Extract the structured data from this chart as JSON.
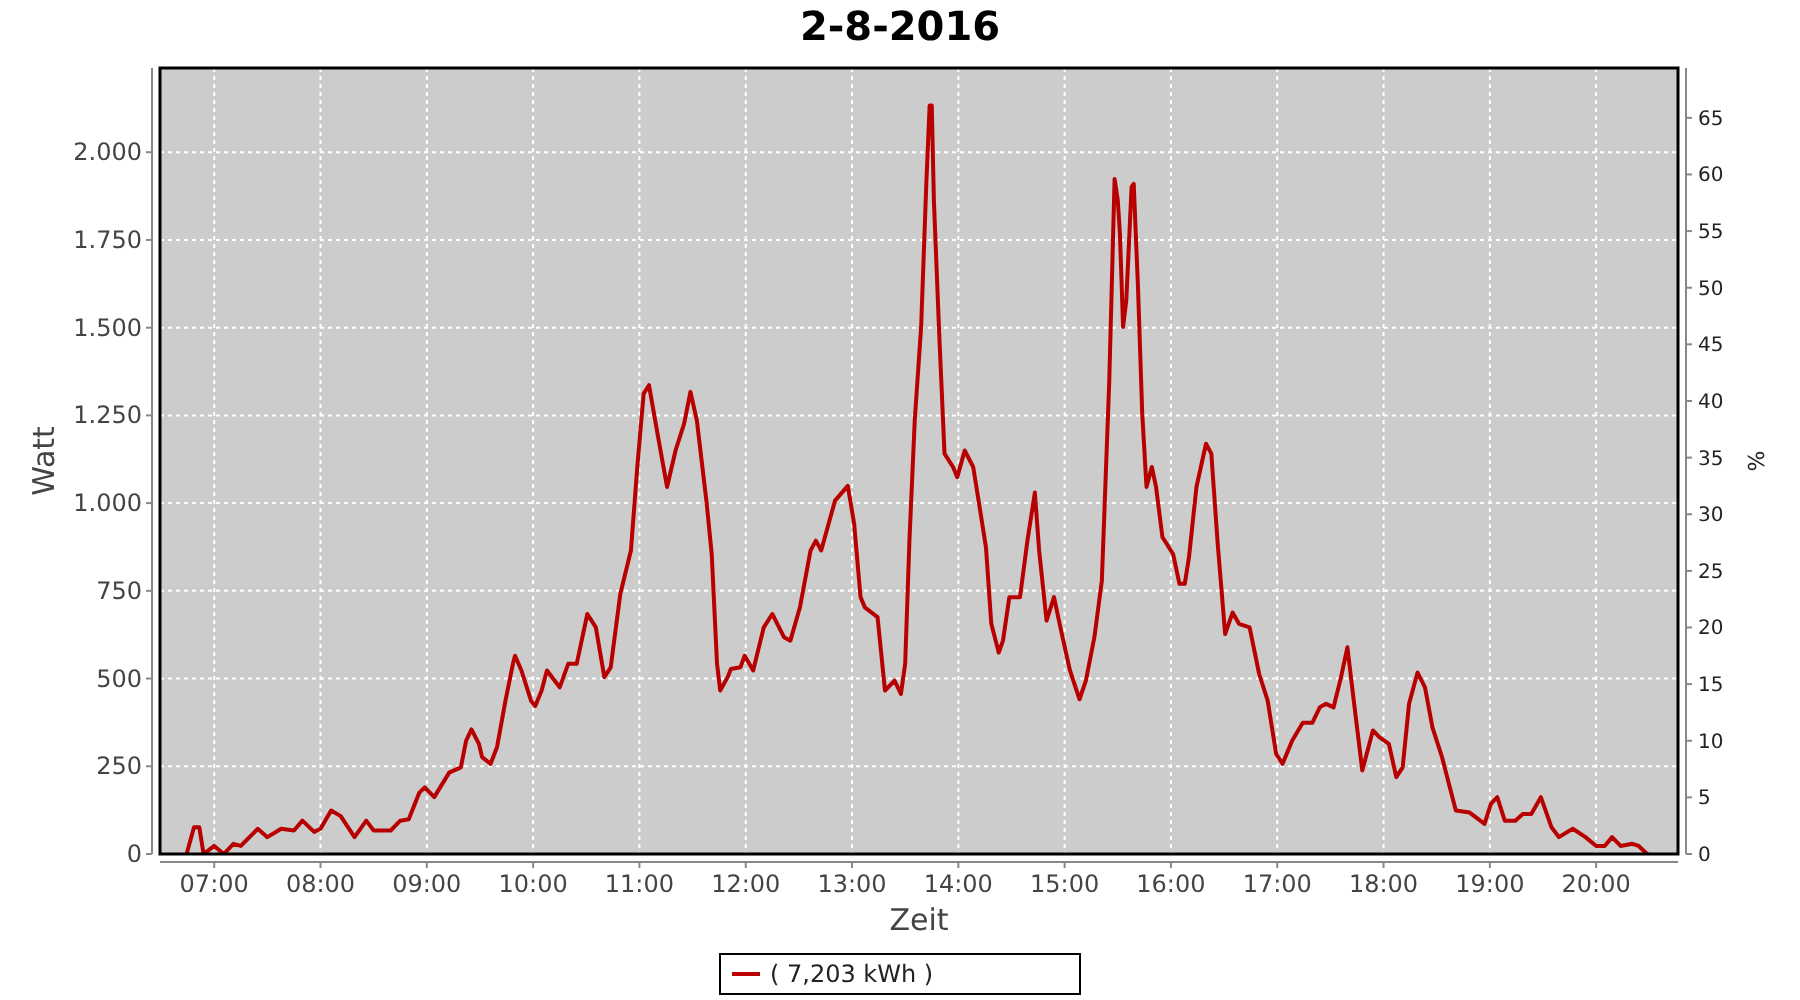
{
  "chart_data": {
    "type": "line",
    "title": "2-8-2016",
    "xlabel": "Zeit",
    "ylabel": "Watt",
    "y2label": "%",
    "xlim": [
      6.49,
      20.77
    ],
    "xticks": [
      {
        "value": 7,
        "label": "07:00"
      },
      {
        "value": 8,
        "label": "08:00"
      },
      {
        "value": 9,
        "label": "09:00"
      },
      {
        "value": 10,
        "label": "10:00"
      },
      {
        "value": 11,
        "label": "11:00"
      },
      {
        "value": 12,
        "label": "12:00"
      },
      {
        "value": 13,
        "label": "13:00"
      },
      {
        "value": 14,
        "label": "14:00"
      },
      {
        "value": 15,
        "label": "15:00"
      },
      {
        "value": 16,
        "label": "16:00"
      },
      {
        "value": 17,
        "label": "17:00"
      },
      {
        "value": 18,
        "label": "18:00"
      },
      {
        "value": 19,
        "label": "19:00"
      },
      {
        "value": 20,
        "label": "20:00"
      }
    ],
    "ylim": [
      0,
      2240
    ],
    "yticks": [
      0,
      250,
      500,
      750,
      {
        "value": 1000,
        "label": "1.000"
      },
      {
        "value": 1250,
        "label": "1.250"
      },
      {
        "value": 1500,
        "label": "1.500"
      },
      {
        "value": 1750,
        "label": "1.750"
      },
      {
        "value": 2000,
        "label": "2.000"
      }
    ],
    "y2lim": [
      0,
      69.4
    ],
    "y2ticks": [
      0,
      5,
      10,
      15,
      20,
      25,
      30,
      35,
      40,
      45,
      50,
      55,
      60,
      65
    ],
    "grid": true,
    "legend": "bottom",
    "marker": "none",
    "line_style": "solid",
    "series": [
      {
        "name": "( 7,203 kWh )",
        "color": "#b80000",
        "x": [
          6.74,
          6.81,
          6.86,
          6.9,
          7.0,
          7.09,
          7.18,
          7.25,
          7.41,
          7.5,
          7.63,
          7.75,
          7.83,
          7.94,
          8.0,
          8.1,
          8.19,
          8.32,
          8.43,
          8.5,
          8.66,
          8.75,
          8.83,
          8.93,
          8.98,
          9.07,
          9.21,
          9.32,
          9.37,
          9.42,
          9.49,
          9.52,
          9.6,
          9.66,
          9.74,
          9.81,
          9.83,
          9.89,
          9.98,
          10.02,
          10.08,
          10.13,
          10.25,
          10.33,
          10.41,
          10.51,
          10.59,
          10.67,
          10.73,
          10.82,
          10.92,
          10.98,
          11.04,
          11.09,
          11.17,
          11.26,
          11.34,
          11.42,
          11.48,
          11.54,
          11.63,
          11.68,
          11.73,
          11.76,
          11.83,
          11.86,
          11.95,
          11.99,
          12.07,
          12.17,
          12.25,
          12.36,
          12.42,
          12.51,
          12.61,
          12.66,
          12.71,
          12.84,
          12.96,
          13.02,
          13.08,
          13.12,
          13.24,
          13.31,
          13.4,
          13.46,
          13.5,
          13.54,
          13.59,
          13.65,
          13.7,
          13.73,
          13.75,
          13.77,
          13.82,
          13.87,
          13.95,
          13.99,
          14.06,
          14.14,
          14.2,
          14.26,
          14.31,
          14.38,
          14.42,
          14.48,
          14.58,
          14.65,
          14.72,
          14.76,
          14.83,
          14.9,
          14.96,
          15.05,
          15.14,
          15.2,
          15.28,
          15.35,
          15.42,
          15.47,
          15.5,
          15.52,
          15.55,
          15.58,
          15.63,
          15.65,
          15.69,
          15.73,
          15.77,
          15.82,
          15.86,
          15.92,
          16.02,
          16.08,
          16.13,
          16.17,
          16.24,
          16.33,
          16.38,
          16.44,
          16.51,
          16.58,
          16.64,
          16.74,
          16.83,
          16.91,
          16.99,
          17.05,
          17.14,
          17.24,
          17.33,
          17.4,
          17.46,
          17.53,
          17.6,
          17.66,
          17.72,
          17.8,
          17.9,
          17.96,
          18.05,
          18.12,
          18.18,
          18.24,
          18.32,
          18.39,
          18.46,
          18.55,
          18.68,
          18.81,
          18.95,
          19.01,
          19.07,
          19.14,
          19.24,
          19.31,
          19.39,
          19.48,
          19.58,
          19.65,
          19.78,
          19.9,
          20.0,
          20.08,
          20.15,
          20.23,
          20.34,
          20.4,
          20.48
        ],
        "values": [
          0,
          76,
          76,
          0,
          23,
          0,
          29,
          23,
          72,
          48,
          72,
          67,
          95,
          63,
          72,
          124,
          108,
          48,
          95,
          67,
          67,
          95,
          99,
          175,
          190,
          162,
          232,
          247,
          323,
          355,
          314,
          276,
          257,
          304,
          437,
          542,
          565,
          523,
          437,
          422,
          466,
          523,
          475,
          542,
          542,
          684,
          646,
          504,
          532,
          741,
          865,
          1103,
          1312,
          1336,
          1198,
          1046,
          1150,
          1226,
          1317,
          1236,
          1007,
          855,
          542,
          466,
          504,
          527,
          532,
          565,
          523,
          646,
          684,
          618,
          608,
          703,
          865,
          893,
          865,
          1007,
          1049,
          941,
          732,
          703,
          675,
          466,
          494,
          456,
          542,
          893,
          1236,
          1502,
          1920,
          2133,
          2133,
          1863,
          1483,
          1141,
          1103,
          1074,
          1150,
          1103,
          989,
          874,
          656,
          574,
          608,
          732,
          732,
          893,
          1030,
          865,
          665,
          732,
          646,
          523,
          441,
          494,
          618,
          779,
          1350,
          1924,
          1863,
          1768,
          1502,
          1578,
          1901,
          1910,
          1616,
          1255,
          1046,
          1103,
          1046,
          903,
          855,
          770,
          770,
          846,
          1046,
          1169,
          1141,
          884,
          627,
          688,
          656,
          646,
          513,
          437,
          285,
          257,
          323,
          374,
          374,
          418,
          428,
          418,
          504,
          589,
          437,
          238,
          352,
          333,
          314,
          219,
          247,
          428,
          517,
          475,
          361,
          276,
          124,
          118,
          86,
          143,
          162,
          95,
          95,
          114,
          114,
          162,
          76,
          48,
          72,
          48,
          23,
          23,
          48,
          23,
          29,
          23,
          0
        ]
      }
    ]
  }
}
